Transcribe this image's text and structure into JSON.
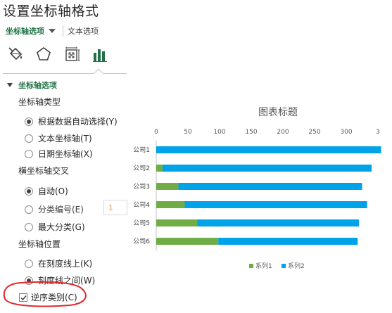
{
  "pane": {
    "title": "设置坐标轴格式",
    "tab_axis_options": "坐标轴选项",
    "tab_text_options": "文本选项",
    "icons": [
      "fill-line-icon",
      "effects-pentagon-icon",
      "size-properties-icon",
      "axis-options-chart-icon"
    ],
    "section_title": "坐标轴选项",
    "axis_type": {
      "label": "坐标轴类型",
      "options": [
        "根据数据自动选择(Y)",
        "文本坐标轴(T)",
        "日期坐标轴(X)"
      ],
      "selected": 0
    },
    "crosses": {
      "label": "横坐标轴交叉",
      "options": [
        "自动(O)",
        "分类编号(E)",
        "最大分类(G)"
      ],
      "selected": 0,
      "category_number_value": "1"
    },
    "axis_position": {
      "label": "坐标轴位置",
      "options": [
        "在刻度线上(K)",
        "刻度线之间(W)"
      ],
      "selected": 1
    },
    "reverse_categories": {
      "label": "逆序类别(C)",
      "checked": true
    },
    "highlight_color": "#e0282c"
  },
  "chart_data": {
    "type": "bar",
    "orientation": "horizontal",
    "stacked": true,
    "title": "图表标题",
    "categories": [
      "公司1",
      "公司2",
      "公司3",
      "公司4",
      "公司5",
      "公司6"
    ],
    "series": [
      {
        "name": "系列1",
        "values": [
          0,
          10,
          35,
          45,
          65,
          98
        ],
        "color": "#70ad47"
      },
      {
        "name": "系列2",
        "values": [
          355,
          330,
          290,
          288,
          255,
          220
        ],
        "color": "#00a2e8"
      }
    ],
    "x_ticks": [
      "0",
      "50",
      "100",
      "150",
      "200",
      "250",
      "300",
      "3"
    ],
    "xlim": [
      0,
      350
    ],
    "x_axis_position": "top",
    "categories_reversed": true,
    "grid": false,
    "legend_position": "bottom"
  }
}
